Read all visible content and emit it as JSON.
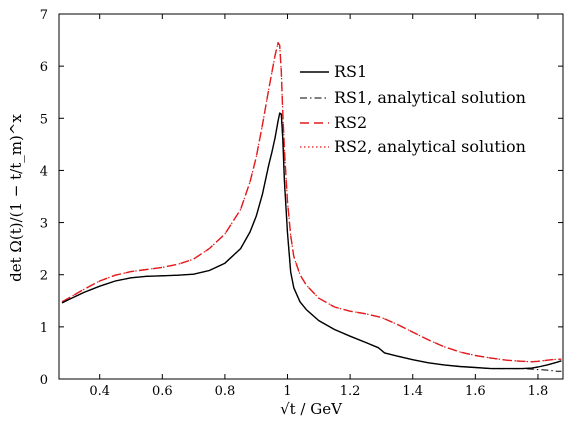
{
  "chart_data": {
    "type": "line",
    "xlabel": "√t / GeV",
    "ylabel": "det Ω(t)/(1 − t/t_m)^x",
    "xlim": [
      0.27,
      1.88
    ],
    "ylim": [
      0,
      7
    ],
    "x_ticks": [
      0.4,
      0.6,
      0.8,
      1.0,
      1.2,
      1.4,
      1.6,
      1.8
    ],
    "x_tick_labels": [
      "0.4",
      "0.6",
      "0.8",
      "1",
      "1.2",
      "1.4",
      "1.6",
      "1.8"
    ],
    "y_ticks": [
      0,
      1,
      2,
      3,
      4,
      5,
      6,
      7
    ],
    "y_tick_labels": [
      "0",
      "1",
      "2",
      "3",
      "4",
      "5",
      "6",
      "7"
    ],
    "grid": false,
    "legend_position": "top-right",
    "series": [
      {
        "name": "RS1",
        "color": "#000000",
        "dash": "solid",
        "x": [
          0.28,
          0.3,
          0.35,
          0.4,
          0.45,
          0.5,
          0.55,
          0.6,
          0.65,
          0.7,
          0.75,
          0.8,
          0.85,
          0.88,
          0.9,
          0.92,
          0.94,
          0.95,
          0.96,
          0.97,
          0.975,
          0.98,
          0.985,
          0.99,
          1.0,
          1.01,
          1.02,
          1.04,
          1.06,
          1.1,
          1.15,
          1.2,
          1.25,
          1.29,
          1.31,
          1.35,
          1.4,
          1.45,
          1.5,
          1.55,
          1.6,
          1.65,
          1.7,
          1.75,
          1.78,
          1.8,
          1.83,
          1.86,
          1.875
        ],
        "y": [
          1.46,
          1.52,
          1.66,
          1.78,
          1.88,
          1.94,
          1.97,
          1.98,
          1.99,
          2.01,
          2.08,
          2.22,
          2.5,
          2.82,
          3.12,
          3.55,
          4.1,
          4.35,
          4.62,
          4.95,
          5.1,
          5.08,
          4.6,
          3.8,
          2.8,
          2.05,
          1.75,
          1.48,
          1.33,
          1.12,
          0.95,
          0.82,
          0.7,
          0.6,
          0.5,
          0.44,
          0.37,
          0.31,
          0.27,
          0.24,
          0.22,
          0.2,
          0.2,
          0.2,
          0.21,
          0.23,
          0.27,
          0.32,
          0.35
        ]
      },
      {
        "name": "RS1, analytical solution",
        "color": "#000000",
        "dash": "dashdot",
        "x": [
          0.28,
          0.3,
          0.35,
          0.4,
          0.45,
          0.5,
          0.55,
          0.6,
          0.65,
          0.7,
          0.75,
          0.8,
          0.85,
          0.88,
          0.9,
          0.92,
          0.94,
          0.95,
          0.96,
          0.97,
          0.975,
          0.98,
          0.985,
          0.99,
          1.0,
          1.01,
          1.02,
          1.04,
          1.06,
          1.1,
          1.15,
          1.2,
          1.25,
          1.29,
          1.31,
          1.35,
          1.4,
          1.45,
          1.5,
          1.55,
          1.6,
          1.65,
          1.7,
          1.75,
          1.78,
          1.8,
          1.83,
          1.86,
          1.875
        ],
        "y": [
          1.46,
          1.52,
          1.66,
          1.78,
          1.88,
          1.94,
          1.97,
          1.98,
          1.99,
          2.01,
          2.08,
          2.22,
          2.5,
          2.82,
          3.12,
          3.55,
          4.1,
          4.35,
          4.62,
          4.95,
          5.1,
          5.08,
          4.6,
          3.8,
          2.8,
          2.05,
          1.75,
          1.48,
          1.33,
          1.12,
          0.95,
          0.82,
          0.7,
          0.6,
          0.5,
          0.44,
          0.37,
          0.31,
          0.27,
          0.24,
          0.22,
          0.2,
          0.2,
          0.2,
          0.19,
          0.18,
          0.17,
          0.15,
          0.15
        ]
      },
      {
        "name": "RS2",
        "color": "#e41a1c",
        "dash": "dashed",
        "x": [
          0.28,
          0.3,
          0.35,
          0.4,
          0.45,
          0.5,
          0.55,
          0.6,
          0.65,
          0.7,
          0.75,
          0.8,
          0.85,
          0.88,
          0.9,
          0.92,
          0.94,
          0.95,
          0.96,
          0.97,
          0.975,
          0.98,
          0.985,
          0.99,
          1.0,
          1.01,
          1.02,
          1.04,
          1.06,
          1.1,
          1.15,
          1.2,
          1.25,
          1.3,
          1.35,
          1.4,
          1.45,
          1.5,
          1.55,
          1.6,
          1.65,
          1.7,
          1.75,
          1.78,
          1.8,
          1.83,
          1.86,
          1.875
        ],
        "y": [
          1.48,
          1.55,
          1.72,
          1.88,
          1.99,
          2.06,
          2.1,
          2.14,
          2.2,
          2.3,
          2.5,
          2.78,
          3.25,
          3.78,
          4.25,
          4.88,
          5.55,
          5.88,
          6.2,
          6.45,
          6.4,
          5.9,
          5.1,
          4.4,
          3.4,
          2.75,
          2.35,
          2.0,
          1.8,
          1.55,
          1.38,
          1.3,
          1.25,
          1.18,
          1.05,
          0.9,
          0.75,
          0.62,
          0.52,
          0.45,
          0.4,
          0.36,
          0.34,
          0.33,
          0.34,
          0.36,
          0.38,
          0.38
        ]
      },
      {
        "name": "RS2, analytical solution",
        "color": "#e41a1c",
        "dash": "dotted",
        "x": [
          0.28,
          0.3,
          0.35,
          0.4,
          0.45,
          0.5,
          0.55,
          0.6,
          0.65,
          0.7,
          0.75,
          0.8,
          0.85,
          0.88,
          0.9,
          0.92,
          0.94,
          0.95,
          0.96,
          0.97,
          0.975,
          0.98,
          0.985,
          0.99,
          1.0,
          1.01,
          1.02,
          1.04,
          1.06,
          1.1,
          1.15,
          1.2,
          1.25,
          1.3,
          1.35,
          1.4,
          1.45,
          1.5,
          1.55,
          1.6,
          1.65,
          1.7,
          1.75,
          1.78,
          1.8,
          1.83,
          1.86,
          1.875
        ],
        "y": [
          1.48,
          1.55,
          1.72,
          1.88,
          1.99,
          2.06,
          2.1,
          2.14,
          2.2,
          2.3,
          2.5,
          2.78,
          3.25,
          3.78,
          4.25,
          4.88,
          5.55,
          5.88,
          6.2,
          6.45,
          6.4,
          5.9,
          5.1,
          4.4,
          3.4,
          2.75,
          2.35,
          2.0,
          1.8,
          1.55,
          1.38,
          1.3,
          1.25,
          1.18,
          1.05,
          0.9,
          0.75,
          0.62,
          0.52,
          0.45,
          0.4,
          0.36,
          0.34,
          0.33,
          0.34,
          0.36,
          0.38,
          0.38
        ]
      }
    ]
  }
}
